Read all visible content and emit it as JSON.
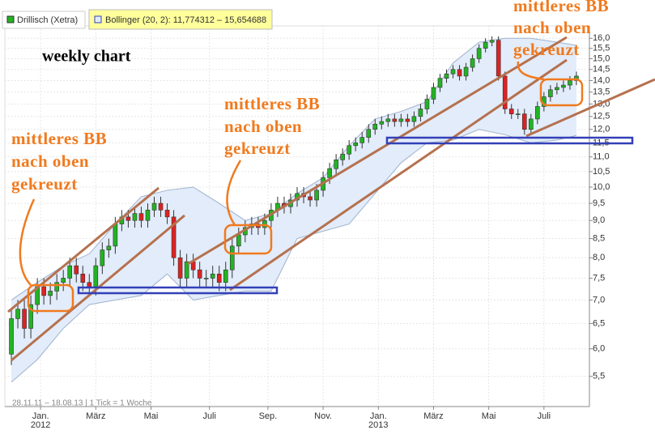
{
  "chart_data": {
    "type": "candlestick",
    "label": "weekly chart",
    "footer": "28.11.11 – 18.08.13 | 1 Tick = 1 Woche",
    "annotations": [
      {
        "lines": [
          "mittleres BB",
          "nach oben",
          "gekreuzt"
        ]
      },
      {
        "lines": [
          "mittleres BB",
          "nach oben",
          "gekreuzt"
        ]
      },
      {
        "lines": [
          "mittleres BB",
          "nach oben",
          "gekreuzt"
        ]
      }
    ],
    "candles": {
      "name": "Drillisch (Xetra)",
      "up_color": "#22b422",
      "down_color": "#dd2222",
      "open": [
        5.9,
        6.6,
        6.8,
        6.4,
        6.9,
        7.3,
        7.1,
        7.2,
        7.4,
        7.5,
        7.8,
        7.6,
        7.4,
        7.3,
        7.8,
        8.2,
        8.3,
        8.9,
        9.1,
        9.0,
        9.2,
        9.0,
        9.3,
        9.5,
        9.3,
        9.1,
        8.0,
        7.5,
        7.9,
        7.7,
        7.5,
        7.5,
        7.6,
        7.4,
        7.7,
        8.3,
        8.6,
        8.8,
        8.9,
        8.8,
        9.0,
        9.3,
        9.5,
        9.4,
        9.6,
        9.8,
        9.7,
        9.6,
        9.9,
        10.3,
        10.6,
        10.9,
        11.1,
        11.4,
        11.5,
        11.7,
        12.0,
        12.2,
        12.3,
        12.4,
        12.3,
        12.4,
        12.3,
        12.5,
        12.8,
        13.2,
        13.7,
        14.1,
        14.3,
        14.5,
        14.2,
        14.6,
        15.0,
        15.5,
        15.8,
        15.9,
        14.2,
        12.8,
        12.6,
        12.6,
        12.0,
        12.4,
        12.9,
        13.3,
        13.6,
        13.7,
        13.8,
        14.0
      ],
      "high": [
        6.8,
        7.0,
        7.0,
        7.1,
        7.5,
        7.5,
        7.4,
        7.6,
        7.7,
        8.0,
        8.0,
        7.8,
        7.6,
        8.0,
        8.4,
        8.5,
        9.1,
        9.3,
        9.3,
        9.4,
        9.4,
        9.5,
        9.7,
        9.7,
        9.5,
        9.3,
        8.2,
        8.1,
        8.1,
        7.9,
        7.7,
        7.8,
        7.8,
        7.9,
        8.5,
        8.8,
        9.0,
        9.1,
        9.1,
        9.2,
        9.5,
        9.7,
        9.7,
        9.8,
        10.0,
        10.0,
        9.9,
        10.1,
        10.5,
        10.8,
        11.1,
        11.3,
        11.6,
        11.7,
        11.9,
        12.2,
        12.4,
        12.5,
        12.6,
        12.6,
        12.6,
        12.6,
        12.7,
        13.0,
        13.4,
        13.9,
        14.3,
        14.5,
        14.7,
        14.7,
        14.8,
        15.2,
        15.7,
        16.0,
        16.1,
        16.1,
        14.4,
        13.0,
        12.8,
        12.8,
        12.6,
        13.1,
        13.5,
        13.8,
        13.9,
        14.0,
        14.2,
        14.4
      ],
      "low": [
        5.7,
        6.4,
        6.2,
        6.2,
        6.7,
        6.9,
        6.9,
        7.0,
        7.2,
        7.3,
        7.4,
        7.2,
        7.1,
        7.1,
        7.6,
        8.0,
        8.1,
        8.7,
        8.8,
        8.8,
        8.8,
        8.8,
        9.1,
        9.1,
        8.9,
        7.8,
        7.3,
        7.3,
        7.5,
        7.3,
        7.3,
        7.3,
        7.2,
        7.2,
        7.5,
        8.1,
        8.4,
        8.6,
        8.6,
        8.6,
        8.8,
        9.1,
        9.2,
        9.2,
        9.4,
        9.5,
        9.4,
        9.4,
        9.7,
        10.1,
        10.4,
        10.7,
        10.9,
        11.2,
        11.3,
        11.5,
        11.8,
        12.0,
        12.1,
        12.1,
        12.1,
        12.1,
        12.1,
        12.3,
        12.6,
        13.0,
        13.5,
        13.9,
        14.1,
        14.0,
        14.0,
        14.4,
        14.8,
        15.3,
        15.6,
        14.0,
        12.6,
        12.4,
        12.4,
        11.8,
        11.8,
        12.2,
        12.7,
        13.1,
        13.4,
        13.5,
        13.6,
        13.8
      ],
      "close": [
        6.6,
        6.8,
        6.4,
        6.9,
        7.3,
        7.1,
        7.2,
        7.4,
        7.5,
        7.8,
        7.6,
        7.4,
        7.3,
        7.8,
        8.2,
        8.3,
        8.9,
        9.1,
        9.0,
        9.2,
        9.0,
        9.3,
        9.5,
        9.3,
        9.1,
        8.0,
        7.5,
        7.9,
        7.7,
        7.5,
        7.5,
        7.6,
        7.4,
        7.7,
        8.3,
        8.6,
        8.8,
        8.9,
        8.8,
        9.0,
        9.3,
        9.5,
        9.4,
        9.6,
        9.8,
        9.7,
        9.6,
        9.9,
        10.3,
        10.6,
        10.9,
        11.1,
        11.4,
        11.5,
        11.7,
        12.0,
        12.2,
        12.3,
        12.4,
        12.3,
        12.4,
        12.3,
        12.5,
        12.8,
        13.2,
        13.7,
        14.1,
        14.3,
        14.5,
        14.2,
        14.6,
        15.0,
        15.5,
        15.8,
        15.9,
        14.2,
        12.8,
        12.6,
        12.6,
        12.0,
        12.4,
        12.9,
        13.3,
        13.6,
        13.7,
        13.8,
        14.0,
        14.2
      ]
    },
    "bollinger": {
      "name": "Bollinger (20, 2): 11,774312 – 15,654688",
      "color": "#e2ecfa",
      "line_color": "#9fb2cc",
      "legend_color": "#ffff9c",
      "x": [
        0,
        4,
        8,
        12,
        16,
        20,
        24,
        28,
        32,
        36,
        40,
        44,
        48,
        52,
        56,
        60,
        64,
        68,
        72,
        76,
        80,
        84,
        87
      ],
      "upper": [
        7.0,
        7.4,
        7.8,
        8.1,
        8.9,
        9.7,
        9.9,
        10.0,
        9.5,
        9.0,
        9.2,
        9.8,
        10.3,
        11.4,
        12.4,
        12.7,
        13.1,
        14.8,
        15.8,
        16.0,
        16.0,
        15.8,
        15.65
      ],
      "lower": [
        5.4,
        5.8,
        6.4,
        6.9,
        7.0,
        7.1,
        7.6,
        7.0,
        7.1,
        7.2,
        7.2,
        8.5,
        8.7,
        8.9,
        9.8,
        10.8,
        11.5,
        11.6,
        12.0,
        11.8,
        11.5,
        11.6,
        11.77
      ]
    },
    "xlim": [
      -1,
      89
    ],
    "xticks": [
      {
        "value": 4.5,
        "label": "Jan."
      },
      {
        "value": 13,
        "label": "März"
      },
      {
        "value": 21.5,
        "label": "Mai"
      },
      {
        "value": 30.5,
        "label": "Juli"
      },
      {
        "value": 39.5,
        "label": "Sep."
      },
      {
        "value": 48,
        "label": "Nov."
      },
      {
        "value": 56.5,
        "label": "Jan."
      },
      {
        "value": 65,
        "label": "März"
      },
      {
        "value": 73.5,
        "label": "Mai"
      },
      {
        "value": 82,
        "label": "Juli"
      }
    ],
    "year_labels": [
      {
        "value": 4.5,
        "label": "2012"
      },
      {
        "value": 56.5,
        "label": "2013"
      }
    ],
    "ylim": [
      5.0,
      16.3
    ],
    "log_scale": true,
    "grid": true,
    "yticks": [
      {
        "value": 5.5,
        "label": "5,5"
      },
      {
        "value": 6,
        "label": "6,0"
      },
      {
        "value": 6.5,
        "label": "6,5"
      },
      {
        "value": 7,
        "label": "7,0"
      },
      {
        "value": 7.5,
        "label": "7,5"
      },
      {
        "value": 8,
        "label": "8,0"
      },
      {
        "value": 8.5,
        "label": "8,5"
      },
      {
        "value": 9,
        "label": "9,0"
      },
      {
        "value": 9.5,
        "label": "9,5"
      },
      {
        "value": 10,
        "label": "10,0"
      },
      {
        "value": 10.5,
        "label": "10,5"
      },
      {
        "value": 11,
        "label": "11,0"
      },
      {
        "value": 11.5,
        "label": "11,5"
      },
      {
        "value": 12,
        "label": "12,0"
      },
      {
        "value": 12.5,
        "label": "12,5"
      },
      {
        "value": 13,
        "label": "13,0"
      },
      {
        "value": 13.5,
        "label": "13,5"
      },
      {
        "value": 14,
        "label": "14,0"
      },
      {
        "value": 14.5,
        "label": "14,5"
      },
      {
        "value": 15,
        "label": "15,0"
      },
      {
        "value": 15.5,
        "label": "15,5"
      },
      {
        "value": 16,
        "label": "16,0"
      }
    ]
  }
}
